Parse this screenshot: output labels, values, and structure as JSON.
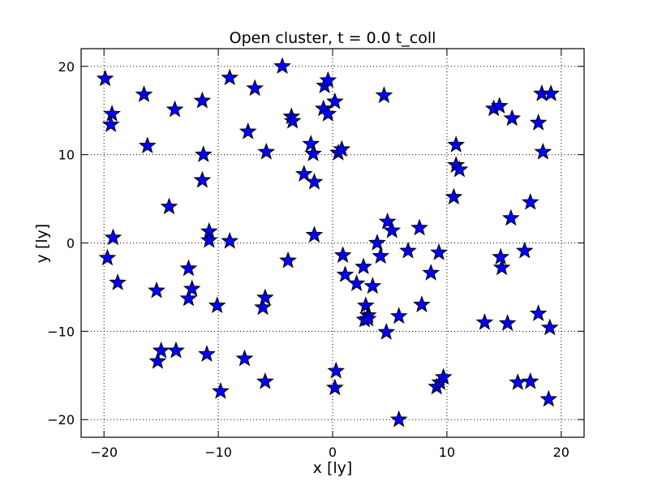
{
  "chart_data": {
    "type": "scatter",
    "title": "Open cluster, t = 0.0 t_coll",
    "xlabel": "x [ly]",
    "ylabel": "y [ly]",
    "xlim": [
      -22,
      22
    ],
    "ylim": [
      -22,
      22
    ],
    "xticks": [
      -20,
      -10,
      0,
      10,
      20
    ],
    "yticks": [
      -20,
      -10,
      0,
      10,
      20
    ],
    "xtick_labels": [
      "−20",
      "−10",
      "0",
      "10",
      "20"
    ],
    "ytick_labels": [
      "−20",
      "−10",
      "0",
      "10",
      "20"
    ],
    "grid": true,
    "marker": "star",
    "marker_color": "#0000ff",
    "edge_color": "#000000",
    "points": [
      [
        -19.9,
        18.6
      ],
      [
        -19.3,
        14.6
      ],
      [
        -19.4,
        13.4
      ],
      [
        -19.2,
        0.6
      ],
      [
        -19.7,
        -1.7
      ],
      [
        -18.8,
        -4.5
      ],
      [
        -16.5,
        16.8
      ],
      [
        -16.2,
        11.0
      ],
      [
        -15.4,
        -5.4
      ],
      [
        -15.3,
        -13.4
      ],
      [
        -15.0,
        -12.2
      ],
      [
        -14.3,
        4.1
      ],
      [
        -13.8,
        15.1
      ],
      [
        -13.7,
        -12.2
      ],
      [
        -12.6,
        -2.9
      ],
      [
        -12.6,
        -6.3
      ],
      [
        -12.3,
        -5.2
      ],
      [
        -11.4,
        16.1
      ],
      [
        -11.3,
        10.0
      ],
      [
        -11.4,
        7.1
      ],
      [
        -10.8,
        1.3
      ],
      [
        -10.8,
        0.3
      ],
      [
        -11.0,
        -12.6
      ],
      [
        -10.1,
        -7.1
      ],
      [
        -9.8,
        -16.8
      ],
      [
        -9.0,
        18.7
      ],
      [
        -9.0,
        0.2
      ],
      [
        -7.4,
        12.6
      ],
      [
        -7.7,
        -13.1
      ],
      [
        -6.8,
        17.5
      ],
      [
        -6.1,
        -7.3
      ],
      [
        -5.9,
        -6.2
      ],
      [
        -5.8,
        10.3
      ],
      [
        -5.9,
        -15.7
      ],
      [
        -4.4,
        20.0
      ],
      [
        -3.6,
        14.3
      ],
      [
        -3.5,
        13.8
      ],
      [
        -2.5,
        7.8
      ],
      [
        -3.9,
        -2.0
      ],
      [
        -1.9,
        11.2
      ],
      [
        -1.7,
        10.1
      ],
      [
        -1.6,
        6.9
      ],
      [
        -1.6,
        0.9
      ],
      [
        -0.8,
        15.2
      ],
      [
        -0.7,
        17.8
      ],
      [
        -0.4,
        18.4
      ],
      [
        -0.4,
        14.6
      ],
      [
        0.2,
        16.0
      ],
      [
        0.5,
        10.2
      ],
      [
        0.8,
        10.6
      ],
      [
        0.3,
        -14.5
      ],
      [
        0.2,
        -16.4
      ],
      [
        0.9,
        -1.4
      ],
      [
        1.1,
        -3.6
      ],
      [
        2.1,
        -4.6
      ],
      [
        2.7,
        -2.7
      ],
      [
        2.9,
        -7.1
      ],
      [
        3.1,
        -8.2
      ],
      [
        2.8,
        -8.7
      ],
      [
        3.1,
        -8.6
      ],
      [
        3.5,
        -4.9
      ],
      [
        3.9,
        0.0
      ],
      [
        4.2,
        -1.5
      ],
      [
        4.5,
        16.7
      ],
      [
        4.8,
        2.4
      ],
      [
        5.2,
        1.4
      ],
      [
        4.7,
        -10.1
      ],
      [
        5.8,
        -8.3
      ],
      [
        5.8,
        -20.0
      ],
      [
        6.6,
        -0.9
      ],
      [
        7.6,
        1.7
      ],
      [
        7.8,
        -7.0
      ],
      [
        8.6,
        -3.4
      ],
      [
        9.1,
        -16.3
      ],
      [
        9.4,
        -15.8
      ],
      [
        9.3,
        -1.1
      ],
      [
        9.7,
        -15.2
      ],
      [
        10.6,
        5.2
      ],
      [
        10.8,
        11.1
      ],
      [
        10.8,
        8.8
      ],
      [
        11.1,
        8.3
      ],
      [
        13.3,
        -9.0
      ],
      [
        14.1,
        15.2
      ],
      [
        14.6,
        15.5
      ],
      [
        14.7,
        -1.6
      ],
      [
        14.8,
        -2.8
      ],
      [
        15.3,
        -9.1
      ],
      [
        15.7,
        14.1
      ],
      [
        15.6,
        2.8
      ],
      [
        16.2,
        -15.8
      ],
      [
        16.8,
        -0.9
      ],
      [
        17.3,
        -15.7
      ],
      [
        17.3,
        4.6
      ],
      [
        18.0,
        -8.0
      ],
      [
        18.0,
        13.6
      ],
      [
        18.3,
        16.9
      ],
      [
        18.4,
        10.3
      ],
      [
        18.9,
        -17.7
      ],
      [
        19.0,
        -9.6
      ],
      [
        19.1,
        16.9
      ]
    ]
  }
}
